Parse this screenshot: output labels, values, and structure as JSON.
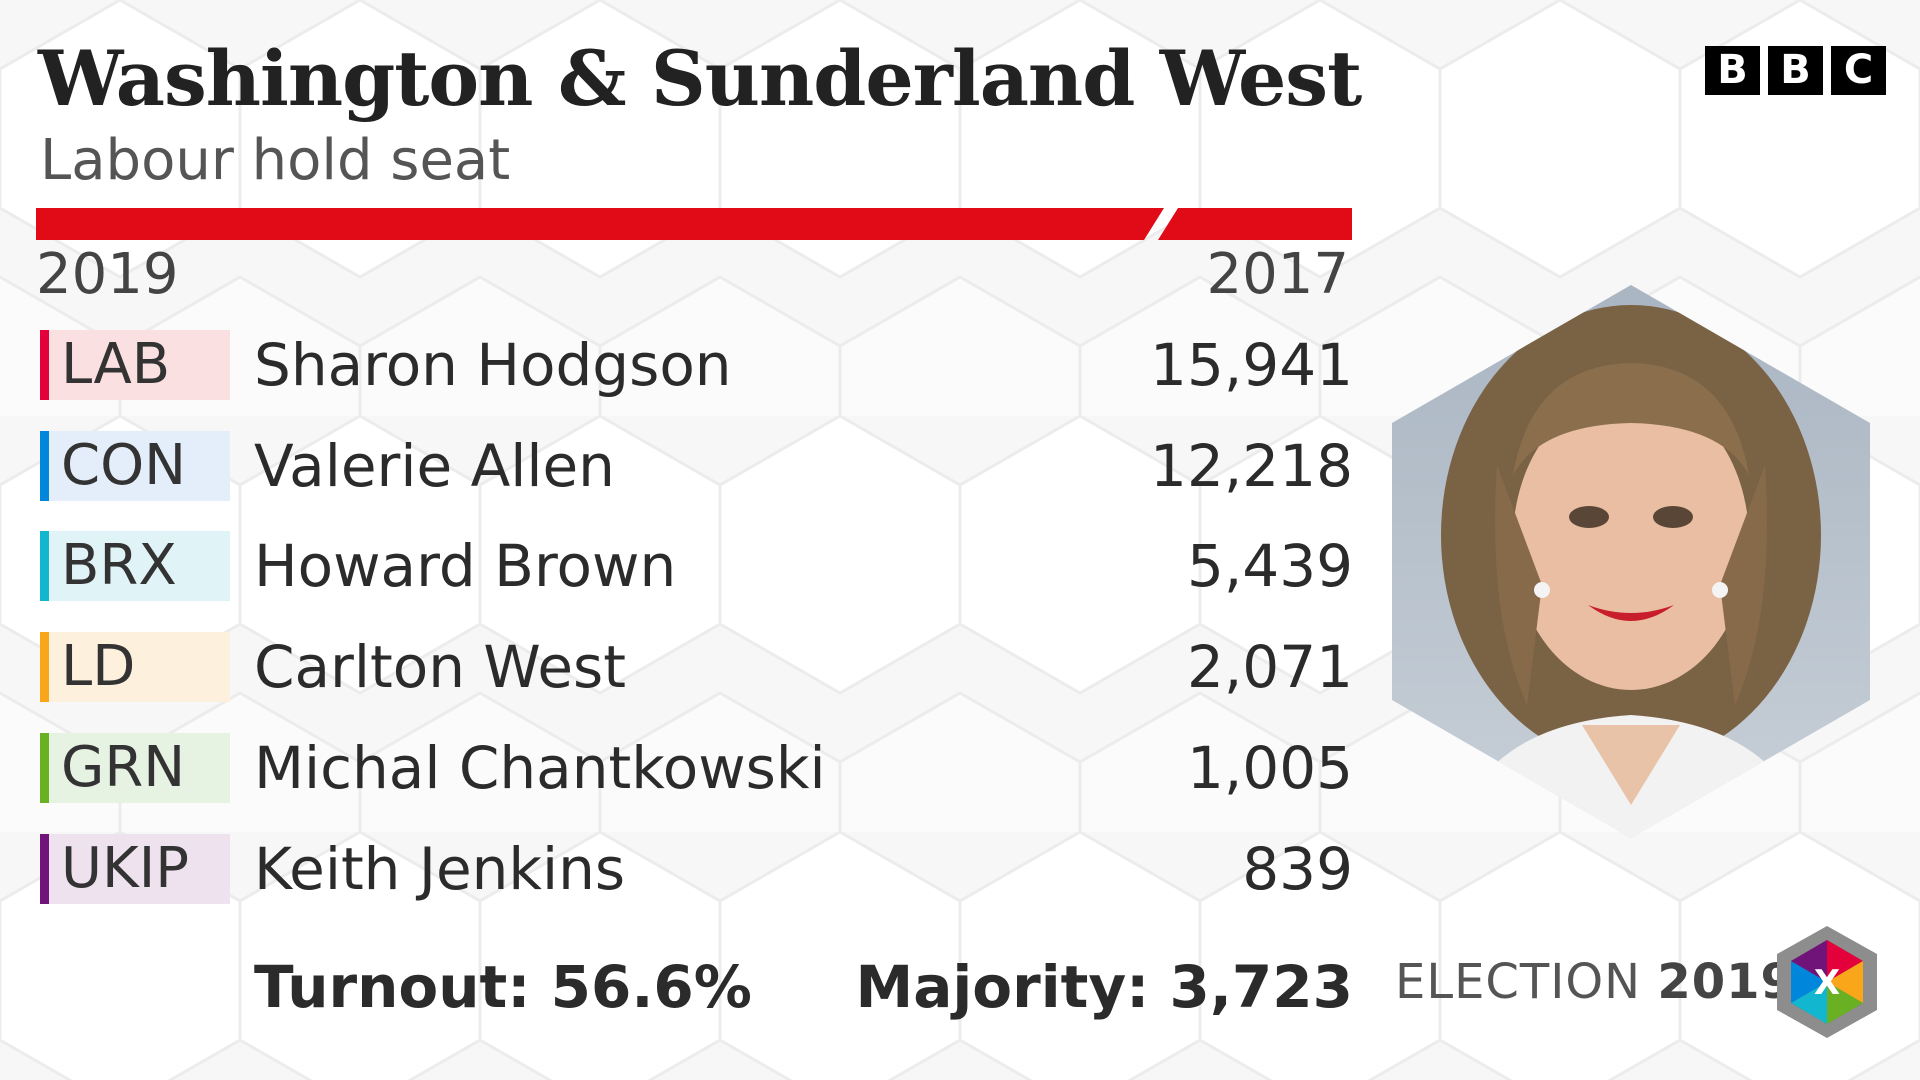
{
  "header": {
    "title": "Washington & Sunderland West",
    "subtitle": "Labour hold seat",
    "brand_letters": [
      "B",
      "B",
      "C"
    ]
  },
  "result_bar": {
    "color": "#e10a17"
  },
  "years": {
    "current": "2019",
    "previous": "2017"
  },
  "candidates": [
    {
      "party": "LAB",
      "name": "Sharon Hodgson",
      "votes": "15,941",
      "color": "#e4003b",
      "tint": "#fbe0e1"
    },
    {
      "party": "CON",
      "name": "Valerie Allen",
      "votes": "12,218",
      "color": "#0087dc",
      "tint": "#e3eefa"
    },
    {
      "party": "BRX",
      "name": "Howard Brown",
      "votes": "5,439",
      "color": "#12b6cf",
      "tint": "#e0f4f8"
    },
    {
      "party": "LD",
      "name": "Carlton West",
      "votes": "2,071",
      "color": "#faa61a",
      "tint": "#fdf1dd"
    },
    {
      "party": "GRN",
      "name": "Michal Chantkowski",
      "votes": "1,005",
      "color": "#6ab023",
      "tint": "#e6f2e2"
    },
    {
      "party": "UKIP",
      "name": "Keith Jenkins",
      "votes": "839",
      "color": "#70147a",
      "tint": "#ede2ee"
    }
  ],
  "footer": {
    "turnout": "Turnout: 56.6%",
    "majority": "Majority: 3,723",
    "election_label": "ELECTION",
    "election_year": "2019",
    "cube_mark": "X"
  },
  "icons": {
    "logo": "bbc-logo",
    "portrait": "candidate-portrait",
    "cube": "election-cube-icon"
  }
}
